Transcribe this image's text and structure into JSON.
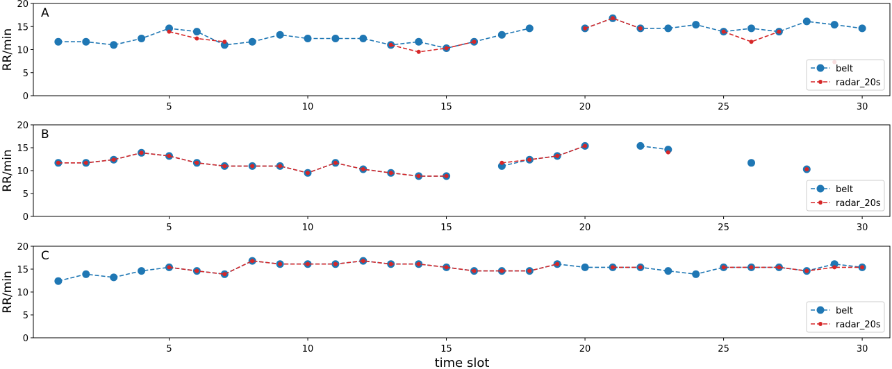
{
  "chart_data": [
    {
      "type": "line",
      "title": "",
      "panel_label": "A",
      "ylabel": "RR/min",
      "xlabel": "",
      "xlim": [
        0.1,
        31.0
      ],
      "ylim": [
        0,
        20
      ],
      "xticks": [
        5,
        10,
        15,
        20,
        25,
        30
      ],
      "yticks": [
        0,
        5,
        10,
        15,
        20
      ],
      "grid": false,
      "legend_position": "lower-right",
      "series": [
        {
          "name": "belt",
          "color": "#1f77b4",
          "style": "dashed-line-large-circle-markers",
          "points": [
            [
              1,
              11.7
            ],
            [
              2,
              11.7
            ],
            [
              3,
              11.0
            ],
            [
              4,
              12.4
            ],
            [
              5,
              14.6
            ],
            [
              6,
              13.9
            ],
            [
              7,
              11.0
            ],
            [
              8,
              11.7
            ],
            [
              9,
              13.2
            ],
            [
              10,
              12.4
            ],
            [
              11,
              12.4
            ],
            [
              12,
              12.4
            ],
            [
              13,
              11.0
            ],
            [
              14,
              11.7
            ],
            [
              15,
              10.3
            ],
            [
              16,
              11.7
            ],
            [
              17,
              13.2
            ],
            [
              18,
              14.6
            ],
            [
              20,
              14.6
            ],
            [
              21,
              16.8
            ],
            [
              22,
              14.6
            ],
            [
              23,
              14.6
            ],
            [
              24,
              15.4
            ],
            [
              25,
              13.9
            ],
            [
              26,
              14.6
            ],
            [
              27,
              13.9
            ],
            [
              28,
              16.1
            ],
            [
              29,
              15.4
            ],
            [
              30,
              14.6
            ]
          ]
        },
        {
          "name": "radar_20s",
          "color": "#d62728",
          "style": "dashed-line-small-dot-markers",
          "points": [
            [
              5,
              13.9
            ],
            [
              6,
              12.4
            ],
            [
              7,
              11.7
            ],
            [
              13,
              11.0
            ],
            [
              14,
              9.5
            ],
            [
              15,
              10.3
            ],
            [
              16,
              11.7
            ],
            [
              20,
              14.6
            ],
            [
              21,
              16.8
            ],
            [
              22,
              14.6
            ],
            [
              25,
              13.9
            ],
            [
              26,
              11.7
            ],
            [
              27,
              13.9
            ],
            [
              29,
              7.3
            ]
          ]
        }
      ]
    },
    {
      "type": "line",
      "title": "",
      "panel_label": "B",
      "ylabel": "RR/min",
      "xlabel": "",
      "xlim": [
        0.1,
        31.0
      ],
      "ylim": [
        0,
        20
      ],
      "xticks": [
        5,
        10,
        15,
        20,
        25,
        30
      ],
      "yticks": [
        0,
        5,
        10,
        15,
        20
      ],
      "grid": false,
      "legend_position": "lower-right",
      "series": [
        {
          "name": "belt",
          "color": "#1f77b4",
          "style": "dashed-line-large-circle-markers",
          "points": [
            [
              1,
              11.7
            ],
            [
              2,
              11.7
            ],
            [
              3,
              12.4
            ],
            [
              4,
              13.9
            ],
            [
              5,
              13.2
            ],
            [
              6,
              11.7
            ],
            [
              7,
              11.0
            ],
            [
              8,
              11.0
            ],
            [
              9,
              11.0
            ],
            [
              10,
              9.5
            ],
            [
              11,
              11.7
            ],
            [
              12,
              10.3
            ],
            [
              13,
              9.5
            ],
            [
              14,
              8.8
            ],
            [
              15,
              8.8
            ],
            [
              17,
              11.0
            ],
            [
              18,
              12.4
            ],
            [
              19,
              13.2
            ],
            [
              20,
              15.4
            ],
            [
              22,
              15.4
            ],
            [
              23,
              14.6
            ],
            [
              26,
              11.7
            ],
            [
              28,
              10.3
            ]
          ]
        },
        {
          "name": "radar_20s",
          "color": "#d62728",
          "style": "dashed-line-small-dot-markers",
          "points": [
            [
              1,
              11.7
            ],
            [
              2,
              11.7
            ],
            [
              3,
              12.4
            ],
            [
              4,
              13.9
            ],
            [
              5,
              13.2
            ],
            [
              6,
              11.7
            ],
            [
              7,
              11.0
            ],
            [
              8,
              11.0
            ],
            [
              9,
              11.0
            ],
            [
              10,
              9.5
            ],
            [
              11,
              11.7
            ],
            [
              12,
              10.3
            ],
            [
              13,
              9.5
            ],
            [
              14,
              8.8
            ],
            [
              15,
              8.8
            ],
            [
              17,
              11.7
            ],
            [
              18,
              12.4
            ],
            [
              19,
              13.2
            ],
            [
              20,
              15.4
            ],
            [
              23,
              14.0
            ],
            [
              28,
              10.3
            ]
          ]
        }
      ]
    },
    {
      "type": "line",
      "title": "",
      "panel_label": "C",
      "ylabel": "RR/min",
      "xlabel": "time slot",
      "xlim": [
        0.1,
        31.0
      ],
      "ylim": [
        0,
        20
      ],
      "xticks": [
        5,
        10,
        15,
        20,
        25,
        30
      ],
      "yticks": [
        0,
        5,
        10,
        15,
        20
      ],
      "grid": false,
      "legend_position": "lower-right",
      "series": [
        {
          "name": "belt",
          "color": "#1f77b4",
          "style": "dashed-line-large-circle-markers",
          "points": [
            [
              1,
              12.4
            ],
            [
              2,
              13.9
            ],
            [
              3,
              13.2
            ],
            [
              4,
              14.6
            ],
            [
              5,
              15.4
            ],
            [
              6,
              14.6
            ],
            [
              7,
              13.9
            ],
            [
              8,
              16.8
            ],
            [
              9,
              16.1
            ],
            [
              10,
              16.1
            ],
            [
              11,
              16.1
            ],
            [
              12,
              16.8
            ],
            [
              13,
              16.1
            ],
            [
              14,
              16.1
            ],
            [
              15,
              15.4
            ],
            [
              16,
              14.6
            ],
            [
              17,
              14.6
            ],
            [
              18,
              14.6
            ],
            [
              19,
              16.1
            ],
            [
              20,
              15.4
            ],
            [
              21,
              15.4
            ],
            [
              22,
              15.4
            ],
            [
              23,
              14.6
            ],
            [
              24,
              13.9
            ],
            [
              25,
              15.4
            ],
            [
              26,
              15.4
            ],
            [
              27,
              15.4
            ],
            [
              28,
              14.6
            ],
            [
              29,
              16.1
            ],
            [
              30,
              15.4
            ]
          ]
        },
        {
          "name": "radar_20s",
          "color": "#d62728",
          "style": "dashed-line-small-dot-markers",
          "points": [
            [
              5,
              15.4
            ],
            [
              6,
              14.6
            ],
            [
              7,
              13.9
            ],
            [
              8,
              16.8
            ],
            [
              9,
              16.1
            ],
            [
              10,
              16.1
            ],
            [
              11,
              16.1
            ],
            [
              12,
              16.8
            ],
            [
              13,
              16.1
            ],
            [
              14,
              16.1
            ],
            [
              15,
              15.4
            ],
            [
              16,
              14.6
            ],
            [
              17,
              14.6
            ],
            [
              18,
              14.6
            ],
            [
              19,
              16.1
            ],
            [
              21,
              15.4
            ],
            [
              22,
              15.4
            ],
            [
              25,
              15.4
            ],
            [
              26,
              15.4
            ],
            [
              27,
              15.4
            ],
            [
              28,
              14.6
            ],
            [
              29,
              15.4
            ],
            [
              30,
              15.4
            ]
          ]
        }
      ]
    }
  ]
}
